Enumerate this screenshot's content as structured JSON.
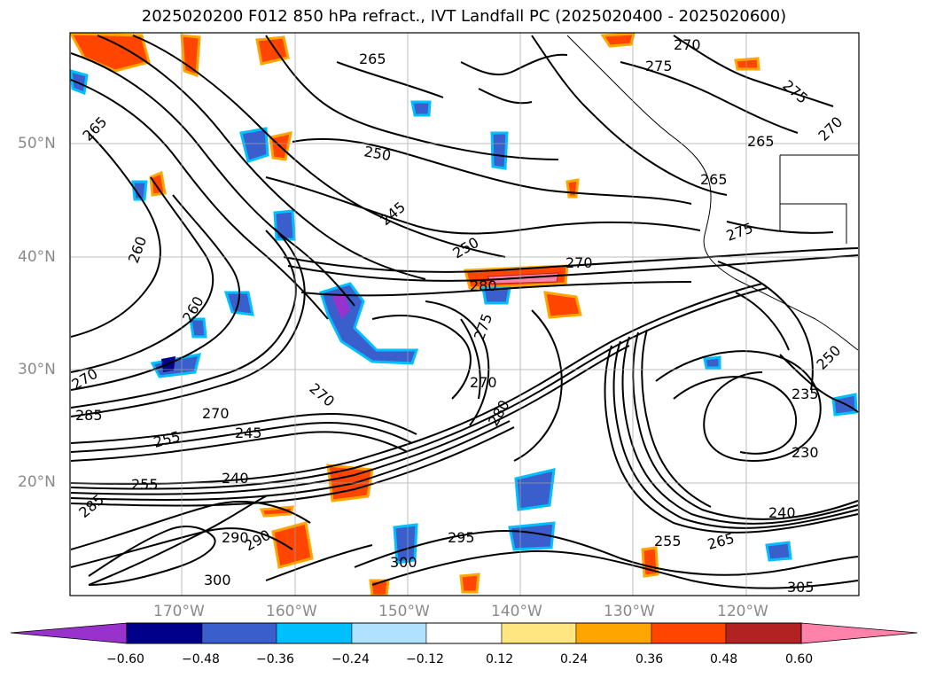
{
  "title": "2025020200 F012 850 hPa refract., IVT Landfall PC (2025020400 - 2025020600)",
  "lat_labels": [
    "50°N",
    "40°N",
    "30°N",
    "20°N"
  ],
  "lon_labels": [
    "170°W",
    "160°W",
    "150°W",
    "140°W",
    "130°W",
    "120°W"
  ],
  "colorbar": {
    "ticks": [
      "−0.60",
      "−0.48",
      "−0.36",
      "−0.24",
      "−0.12",
      "0.12",
      "0.24",
      "0.36",
      "0.48",
      "0.60"
    ],
    "colors": [
      "#9932cc",
      "#00008b",
      "#3a5fcd",
      "#00bfff",
      "#b0e2ff",
      "#ffffff",
      "#ffe680",
      "#ffa500",
      "#ff4500",
      "#b22222",
      "#ff82ab"
    ]
  },
  "contour_labels": [
    "270",
    "275",
    "275",
    "270",
    "265",
    "265",
    "265",
    "265",
    "250",
    "245",
    "250",
    "270",
    "280",
    "260",
    "275",
    "270",
    "260",
    "270",
    "285",
    "270",
    "255",
    "245",
    "240",
    "255",
    "285",
    "290",
    "300",
    "295",
    "300",
    "255",
    "265",
    "240",
    "230",
    "235",
    "250",
    "305",
    "280",
    "290",
    "270",
    "275"
  ],
  "colors": {
    "contour": "#000000",
    "grid": "#a0a0a0",
    "axis_text": "#8a8a8a"
  }
}
